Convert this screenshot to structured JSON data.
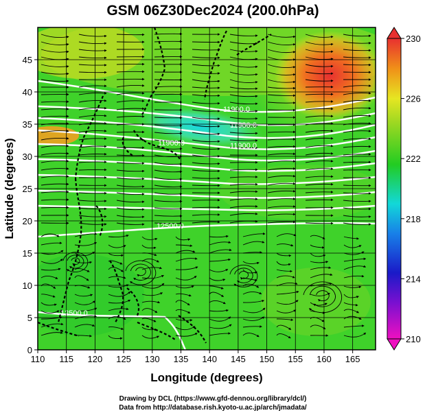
{
  "title": "GSM 06Z30Dec2024 (200.0hPa)",
  "x_axis": {
    "label": "Longitude (degrees)",
    "min": 110,
    "max": 169,
    "ticks": [
      "110",
      "115",
      "120",
      "125",
      "130",
      "135",
      "140",
      "145",
      "150",
      "155",
      "160",
      "165"
    ]
  },
  "y_axis": {
    "label": "Latitude  (degrees)",
    "min": 0,
    "max": 50,
    "ticks": [
      "0",
      "5",
      "10",
      "15",
      "20",
      "25",
      "30",
      "35",
      "40",
      "45"
    ]
  },
  "colorbar": {
    "min": 210,
    "max": 230,
    "labels": [
      "230",
      "226",
      "222",
      "218",
      "214",
      "210"
    ],
    "colors": {
      "low": "#ee10c0",
      "blue": "#1a1ac8",
      "cyan": "#12d8d8",
      "green": "#22cc22",
      "yellow": "#e6e622",
      "orange": "#f09018",
      "red": "#e83030"
    }
  },
  "contour_labels": [
    "11900.0",
    "11900.0",
    "11900.0",
    "11900.0",
    "12500.0",
    "12500.0"
  ],
  "credits": {
    "line1": "Drawing by DCL (https://www.gfd-dennou.org/library/dcl/)",
    "line2": "Data from http://database.rish.kyoto-u.ac.jp/arch/jmadata/"
  }
}
